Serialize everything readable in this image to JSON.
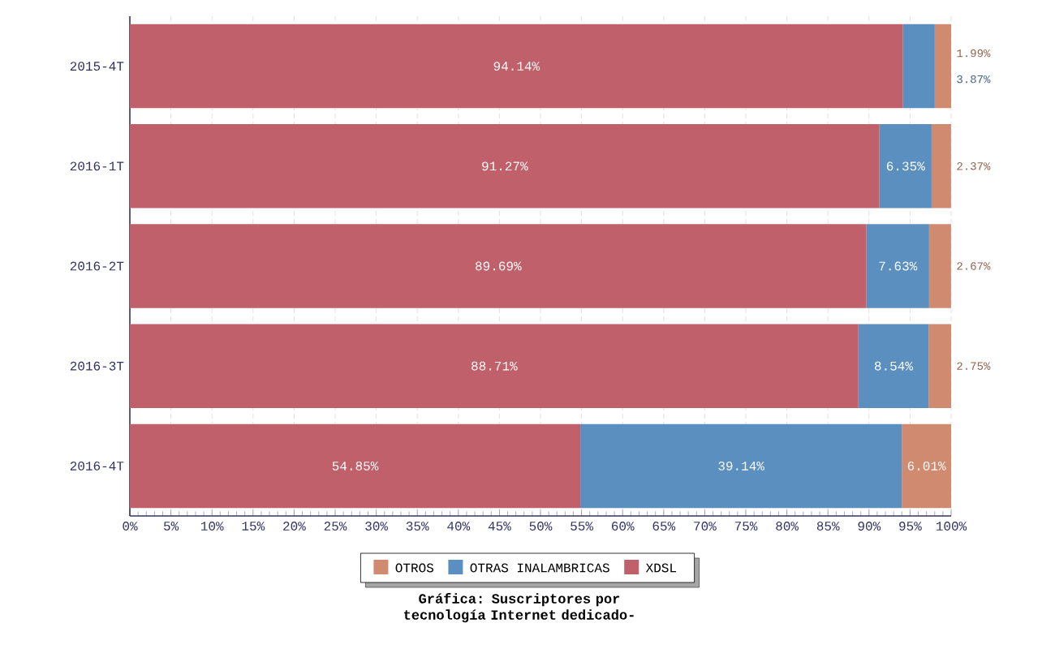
{
  "chart_data": {
    "type": "bar",
    "orientation": "horizontal",
    "stacked": true,
    "title": "Gráfica: Suscriptores por tecnología Internet dedicado-",
    "categories": [
      "2015-4T",
      "2016-1T",
      "2016-2T",
      "2016-3T",
      "2016-4T"
    ],
    "series": [
      {
        "name": "XDSL",
        "color": "#c0606b",
        "values": [
          94.14,
          91.27,
          89.69,
          88.71,
          54.85
        ],
        "value_labels": [
          "94.14%",
          "91.27%",
          "89.69%",
          "88.71%",
          "54.85%"
        ]
      },
      {
        "name": "OTRAS INALAMBRICAS",
        "color": "#5b8fc0",
        "values": [
          3.87,
          6.35,
          7.63,
          8.54,
          39.14
        ],
        "value_labels": [
          "3.87%",
          "6.35%",
          "7.63%",
          "8.54%",
          "39.14%"
        ]
      },
      {
        "name": "OTROS",
        "color": "#d08a70",
        "values": [
          1.99,
          2.37,
          2.67,
          2.75,
          6.01
        ],
        "value_labels": [
          "1.99%",
          "2.37%",
          "2.67%",
          "2.75%",
          "6.01%"
        ]
      }
    ],
    "xlim": [
      0,
      100
    ],
    "xticks": [
      {
        "value": 0,
        "label": "0%"
      },
      {
        "value": 5,
        "label": "5%"
      },
      {
        "value": 10,
        "label": "10%"
      },
      {
        "value": 15,
        "label": "15%"
      },
      {
        "value": 20,
        "label": "20%"
      },
      {
        "value": 25,
        "label": "25%"
      },
      {
        "value": 30,
        "label": "30%"
      },
      {
        "value": 35,
        "label": "35%"
      },
      {
        "value": 40,
        "label": "40%"
      },
      {
        "value": 45,
        "label": "45%"
      },
      {
        "value": 50,
        "label": "50%"
      },
      {
        "value": 55,
        "label": "55%"
      },
      {
        "value": 60,
        "label": "60%"
      },
      {
        "value": 65,
        "label": "65%"
      },
      {
        "value": 70,
        "label": "70%"
      },
      {
        "value": 75,
        "label": "75%"
      },
      {
        "value": 80,
        "label": "80%"
      },
      {
        "value": 85,
        "label": "85%"
      },
      {
        "value": 90,
        "label": "90%"
      },
      {
        "value": 95,
        "label": "95%"
      },
      {
        "value": 100,
        "label": "100%"
      }
    ],
    "grid": "x",
    "legend": "bottom"
  }
}
